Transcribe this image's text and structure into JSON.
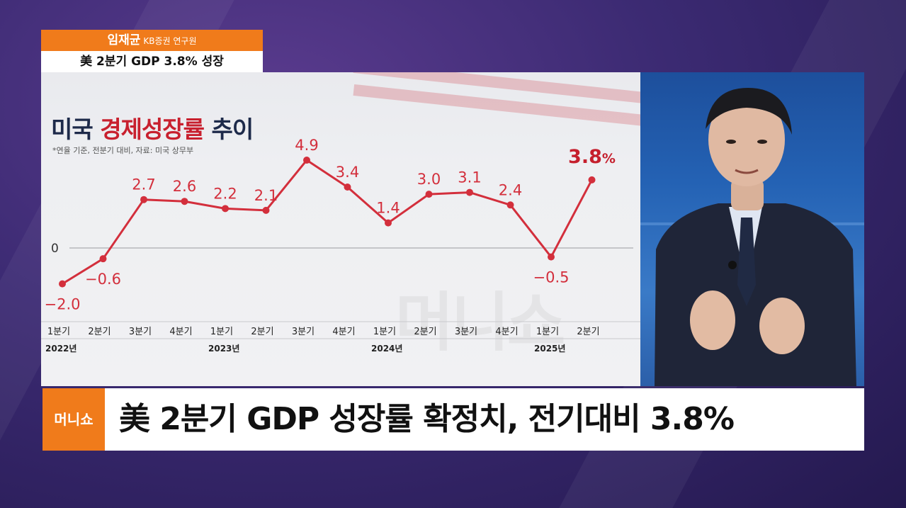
{
  "nametag": {
    "name": "임재균",
    "affiliation": "KB증권 연구원",
    "topic": "美 2분기 GDP 3.8% 성장"
  },
  "chart_header": {
    "title_part1": "미국 ",
    "title_highlight": "경제성장률",
    "title_part2": " 추이",
    "subtitle": "*연율 기준, 전분기 대비, 자료: 미국 상무부"
  },
  "chart_data": {
    "type": "line",
    "title": "미국 경제성장률 추이",
    "categories": [
      "1분기",
      "2분기",
      "3분기",
      "4분기",
      "1분기",
      "2분기",
      "3분기",
      "4분기",
      "1분기",
      "2분기",
      "3분기",
      "4분기",
      "1분기",
      "2분기"
    ],
    "years": [
      {
        "label": "2022년",
        "index": 0
      },
      {
        "label": "2023년",
        "index": 4
      },
      {
        "label": "2024년",
        "index": 8
      },
      {
        "label": "2025년",
        "index": 12
      }
    ],
    "values": [
      -2.0,
      -0.6,
      2.7,
      2.6,
      2.2,
      2.1,
      4.9,
      3.4,
      1.4,
      3.0,
      3.1,
      2.4,
      -0.5,
      3.8
    ],
    "value_labels": [
      "−2.0",
      "−0.6",
      "2.7",
      "2.6",
      "2.2",
      "2.1",
      "4.9",
      "3.4",
      "1.4",
      "3.0",
      "3.1",
      "2.4",
      "−0.5",
      "3.8"
    ],
    "last_value_unit": "%",
    "zero_label": "0",
    "ylim": [
      -2.5,
      5.5
    ],
    "line_color": "#d32f3c"
  },
  "watermark": "머니쇼",
  "ticker": {
    "logo": "머니쇼",
    "headline": "美 2분기 GDP 성장률 확정치, 전기대비 3.8%"
  }
}
